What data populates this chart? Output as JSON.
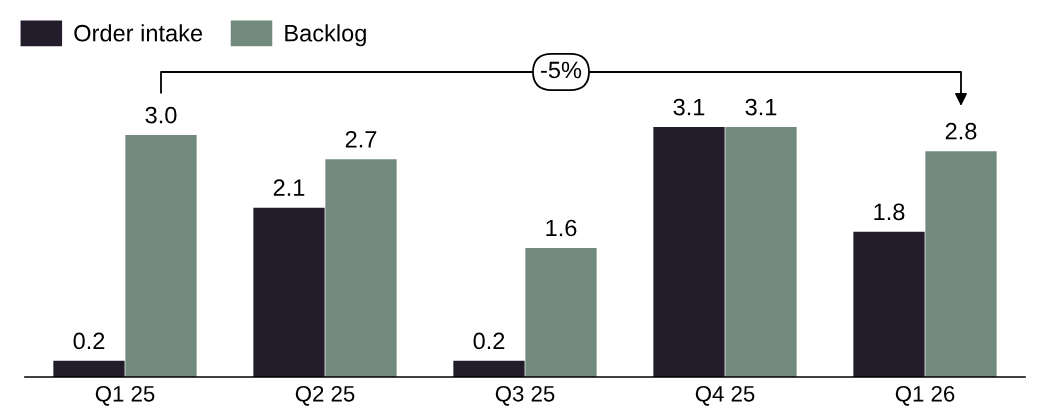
{
  "chart_data": {
    "type": "bar",
    "categories": [
      "Q1 25",
      "Q2 25",
      "Q3 25",
      "Q4 25",
      "Q1 26"
    ],
    "series": [
      {
        "name": "Order intake",
        "color": "#221c2b",
        "values": [
          0.2,
          2.1,
          0.2,
          3.1,
          1.8
        ],
        "value_labels": [
          "0.2",
          "2.1",
          "0.2",
          "3.1",
          "1.8"
        ]
      },
      {
        "name": "Backlog",
        "color": "#728a7e",
        "values": [
          3.0,
          2.7,
          1.6,
          3.1,
          2.8
        ],
        "value_labels": [
          "3.0",
          "2.7",
          "1.6",
          "3.1",
          "2.8"
        ]
      }
    ],
    "legend": "top left",
    "grid": false,
    "annotations": [
      "-5%"
    ]
  }
}
